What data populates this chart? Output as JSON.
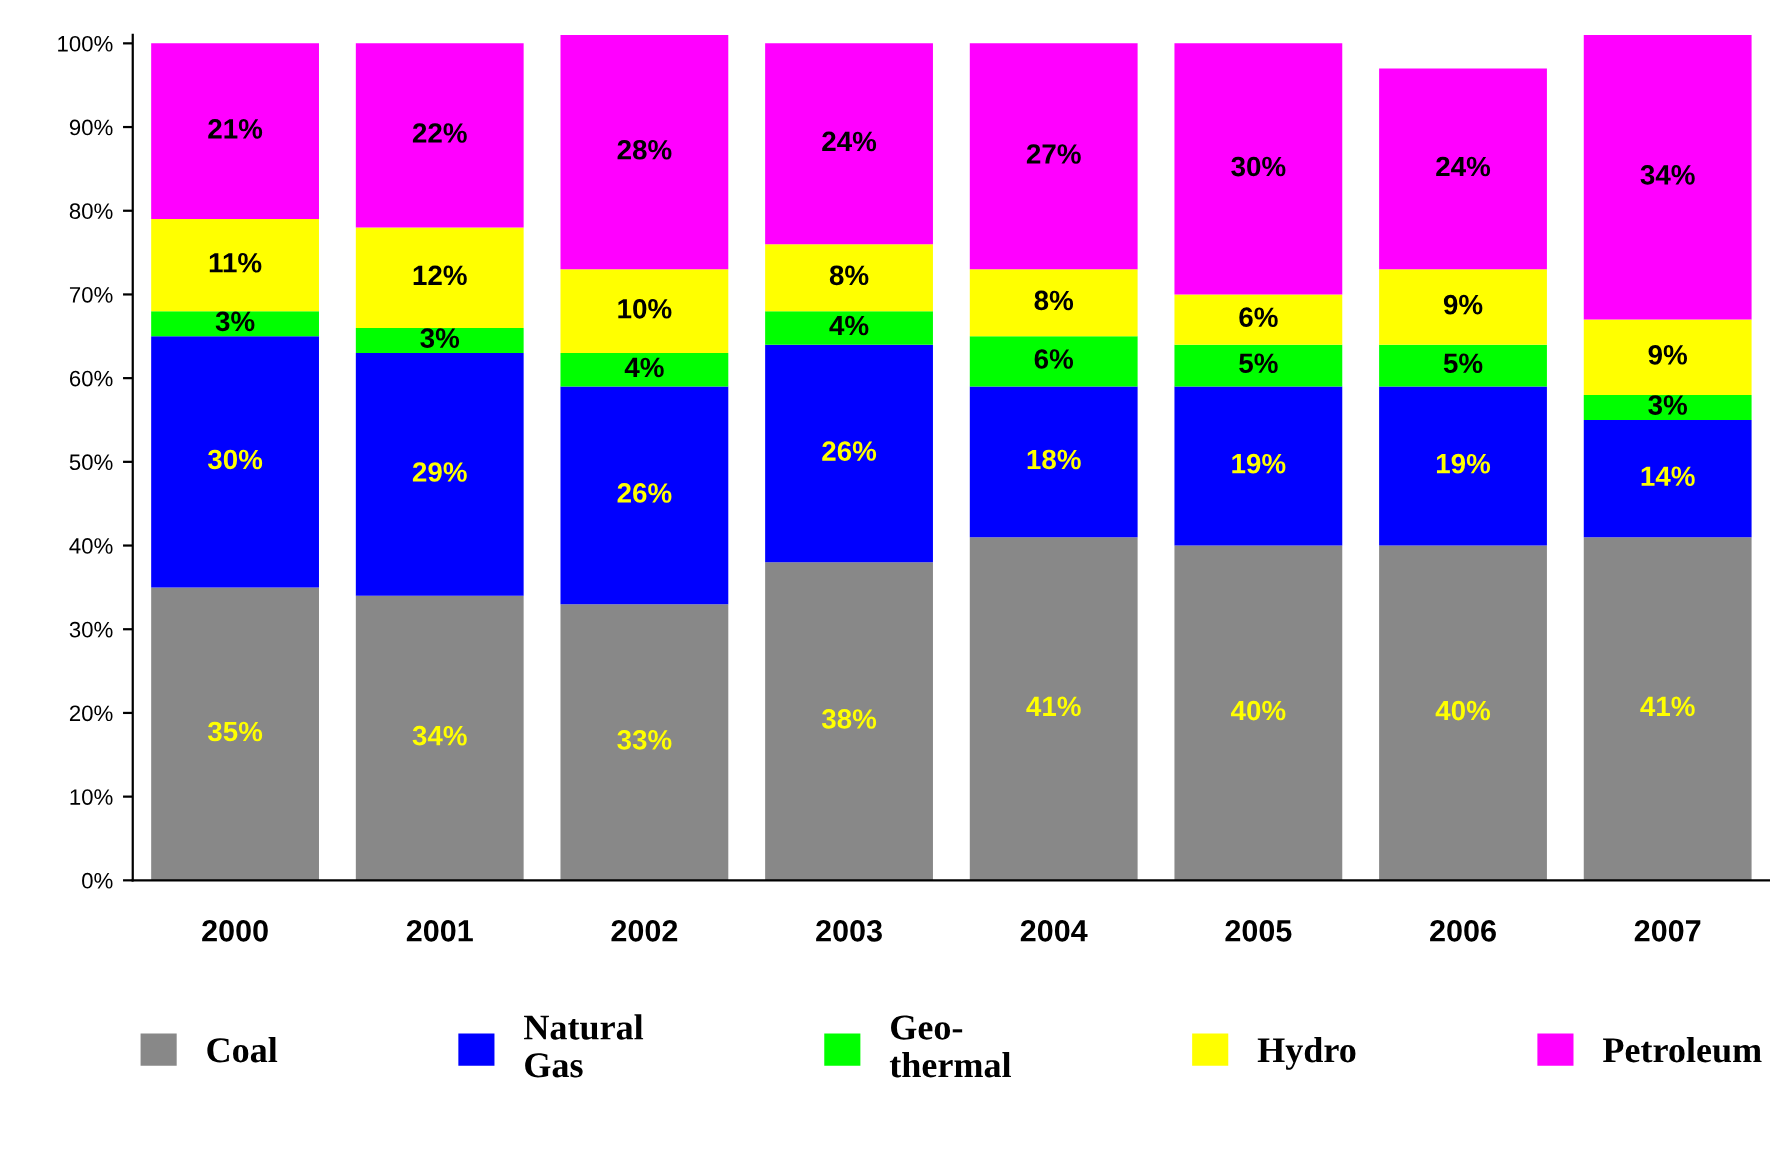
{
  "chart_data": {
    "type": "bar",
    "stacked": true,
    "legend": "bottom",
    "grid": false,
    "categories": [
      "2000",
      "2001",
      "2002",
      "2003",
      "2004",
      "2005",
      "2006",
      "2007"
    ],
    "ylim": [
      0,
      101
    ],
    "yticks": [
      {
        "value": 0,
        "label": "0%"
      },
      {
        "value": 10,
        "label": "10%"
      },
      {
        "value": 20,
        "label": "20%"
      },
      {
        "value": 30,
        "label": "30%"
      },
      {
        "value": 40,
        "label": "40%"
      },
      {
        "value": 50,
        "label": "50%"
      },
      {
        "value": 60,
        "label": "60%"
      },
      {
        "value": 70,
        "label": "70%"
      },
      {
        "value": 80,
        "label": "80%"
      },
      {
        "value": 90,
        "label": "90%"
      },
      {
        "value": 100,
        "label": "100%"
      }
    ],
    "series": [
      {
        "name": "Coal",
        "color": "#888888",
        "values": [
          35,
          34,
          33,
          38,
          41,
          40,
          40,
          41
        ],
        "value_labels": [
          "35%",
          "34%",
          "33%",
          "38%",
          "41%",
          "40%",
          "40%",
          "41%"
        ]
      },
      {
        "name": "Natural\nGas",
        "color": "#0000ff",
        "values": [
          30,
          29,
          26,
          26,
          18,
          19,
          19,
          14
        ],
        "value_labels": [
          "30%",
          "29%",
          "26%",
          "26%",
          "18%",
          "19%",
          "19%",
          "14%"
        ]
      },
      {
        "name": "Geo-\nthermal",
        "color": "#00ff00",
        "values": [
          3,
          3,
          4,
          4,
          6,
          5,
          5,
          3
        ],
        "value_labels": [
          "3%",
          "3%",
          "4%",
          "4%",
          "6%",
          "5%",
          "5%",
          "3%"
        ]
      },
      {
        "name": "Hydro",
        "color": "#ffff00",
        "values": [
          11,
          12,
          10,
          8,
          8,
          6,
          9,
          9
        ],
        "value_labels": [
          "11%",
          "12%",
          "10%",
          "8%",
          "8%",
          "6%",
          "9%",
          "9%"
        ]
      },
      {
        "name": "Petroleum",
        "color": "#ff00ff",
        "values": [
          21,
          22,
          28,
          24,
          27,
          30,
          24,
          34
        ],
        "value_labels": [
          "21%",
          "22%",
          "28%",
          "24%",
          "27%",
          "30%",
          "24%",
          "34%"
        ]
      }
    ]
  }
}
